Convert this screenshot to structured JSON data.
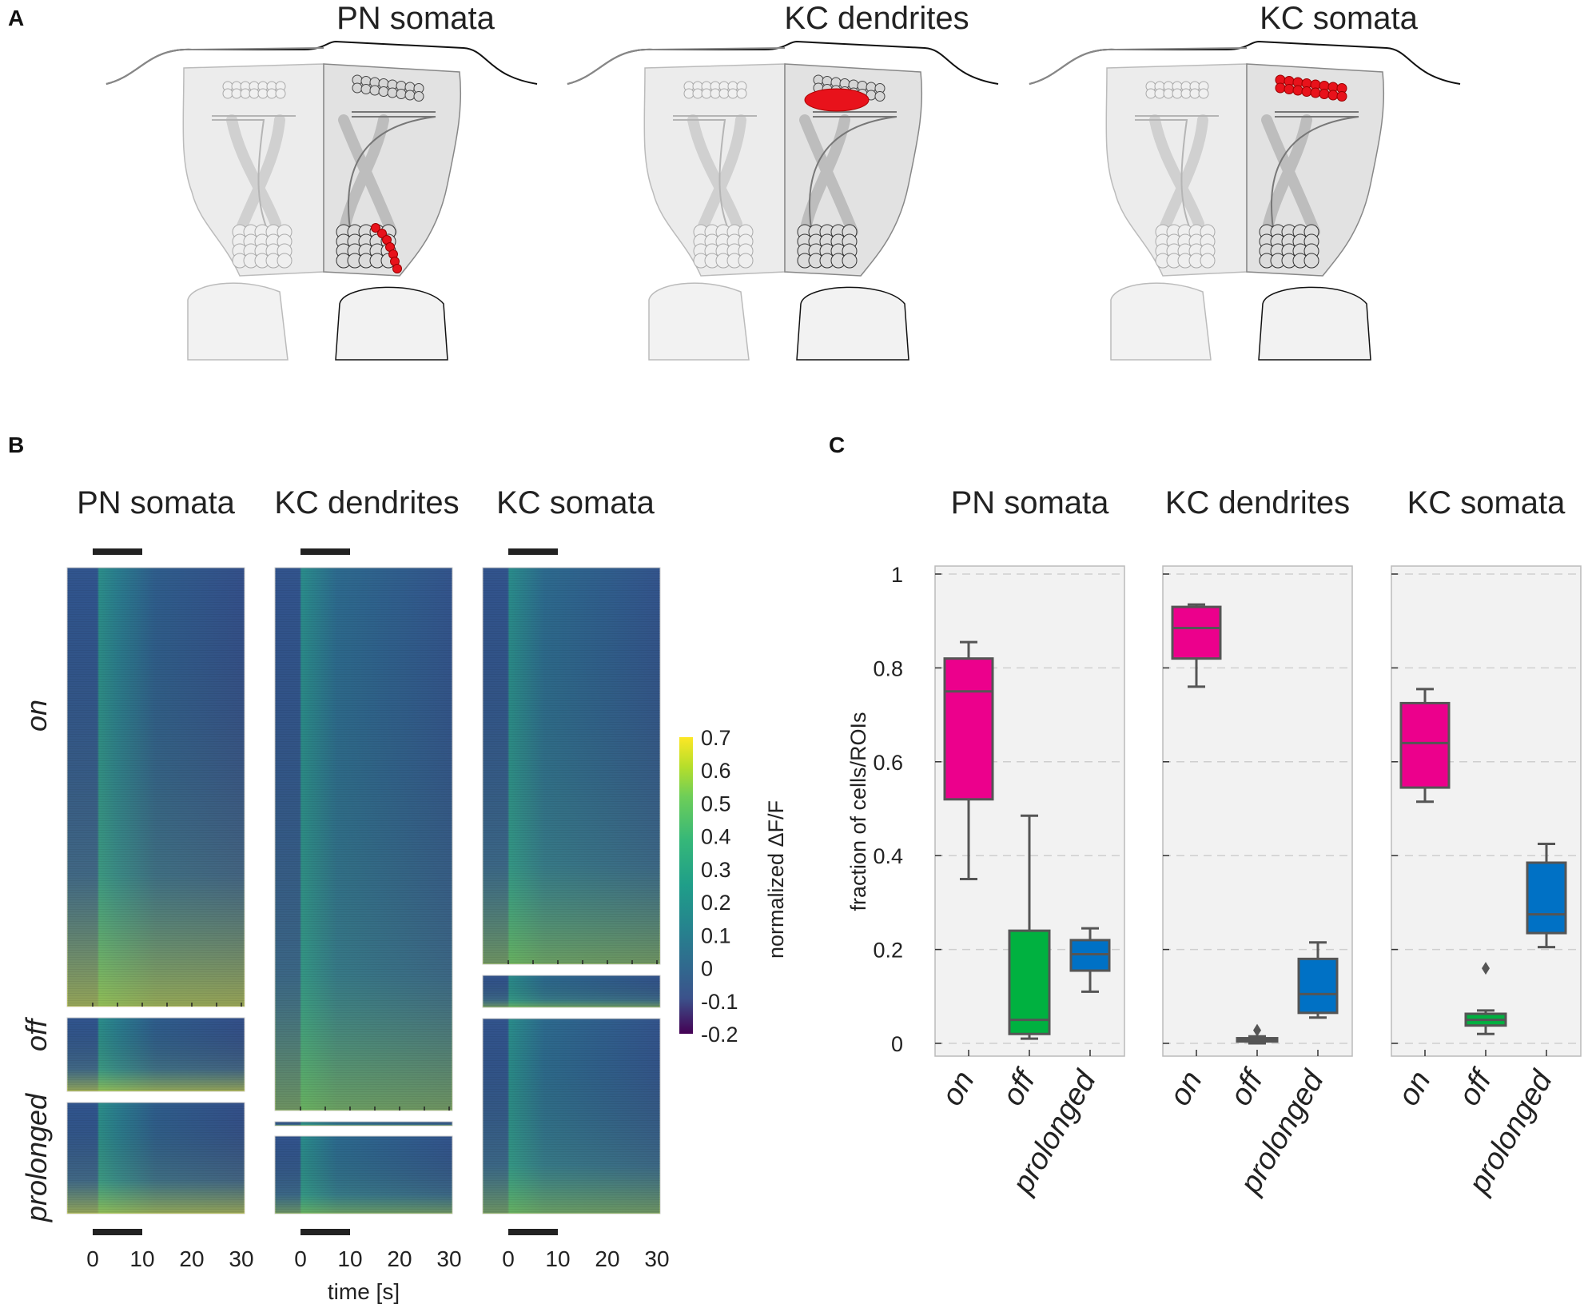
{
  "panel_labels": {
    "a": "A",
    "b": "B",
    "c": "C"
  },
  "panel_a": {
    "titles": [
      "PN somata",
      "KC dendrites",
      "KC somata"
    ],
    "highlight_color": "#e8121b"
  },
  "panel_b": {
    "titles": [
      "PN somata",
      "KC dendrites",
      "KC somata"
    ],
    "row_labels": {
      "on": "on",
      "off": "off",
      "prolonged": "prolonged"
    },
    "x_ticks": [
      "0",
      "10",
      "20",
      "30"
    ],
    "x_label": "time [s]",
    "colorbar": {
      "label": "normalized ΔF/F",
      "ticks": [
        "0.7",
        "0.6",
        "0.5",
        "0.4",
        "0.3",
        "0.2",
        "0.1",
        "0",
        "-0.1",
        "-0.2"
      ],
      "range": [
        -0.2,
        0.7
      ]
    }
  },
  "chart_data": {
    "type": "box",
    "titles": [
      "PN somata",
      "KC dendrites",
      "KC somata"
    ],
    "ylabel": "fraction of cells/ROIs",
    "ylim": [
      0,
      1
    ],
    "y_ticks": [
      "0",
      "0.2",
      "0.4",
      "0.6",
      "0.8",
      "1"
    ],
    "categories": [
      "on",
      "off",
      "prolonged"
    ],
    "colors": {
      "on": "#ec008c",
      "off": "#00b140",
      "prolonged": "#0071c5"
    },
    "panels": [
      {
        "name": "PN somata",
        "boxes": [
          {
            "cat": "on",
            "min": 0.35,
            "q1": 0.52,
            "median": 0.75,
            "q3": 0.82,
            "max": 0.855
          },
          {
            "cat": "off",
            "min": 0.01,
            "q1": 0.02,
            "median": 0.05,
            "q3": 0.24,
            "max": 0.485
          },
          {
            "cat": "prolonged",
            "min": 0.11,
            "q1": 0.155,
            "median": 0.19,
            "q3": 0.22,
            "max": 0.245
          }
        ]
      },
      {
        "name": "KC dendrites",
        "boxes": [
          {
            "cat": "on",
            "min": 0.76,
            "q1": 0.82,
            "median": 0.885,
            "q3": 0.93,
            "max": 0.935
          },
          {
            "cat": "off",
            "min": 0.0,
            "q1": 0.004,
            "median": 0.007,
            "q3": 0.011,
            "max": 0.015,
            "outliers": [
              0.028
            ]
          },
          {
            "cat": "prolonged",
            "min": 0.055,
            "q1": 0.065,
            "median": 0.105,
            "q3": 0.18,
            "max": 0.215
          }
        ]
      },
      {
        "name": "KC somata",
        "boxes": [
          {
            "cat": "on",
            "min": 0.515,
            "q1": 0.545,
            "median": 0.64,
            "q3": 0.725,
            "max": 0.755
          },
          {
            "cat": "off",
            "min": 0.02,
            "q1": 0.038,
            "median": 0.05,
            "q3": 0.063,
            "max": 0.07,
            "outliers": [
              0.16
            ]
          },
          {
            "cat": "prolonged",
            "min": 0.205,
            "q1": 0.235,
            "median": 0.275,
            "q3": 0.385,
            "max": 0.425
          }
        ]
      }
    ]
  }
}
